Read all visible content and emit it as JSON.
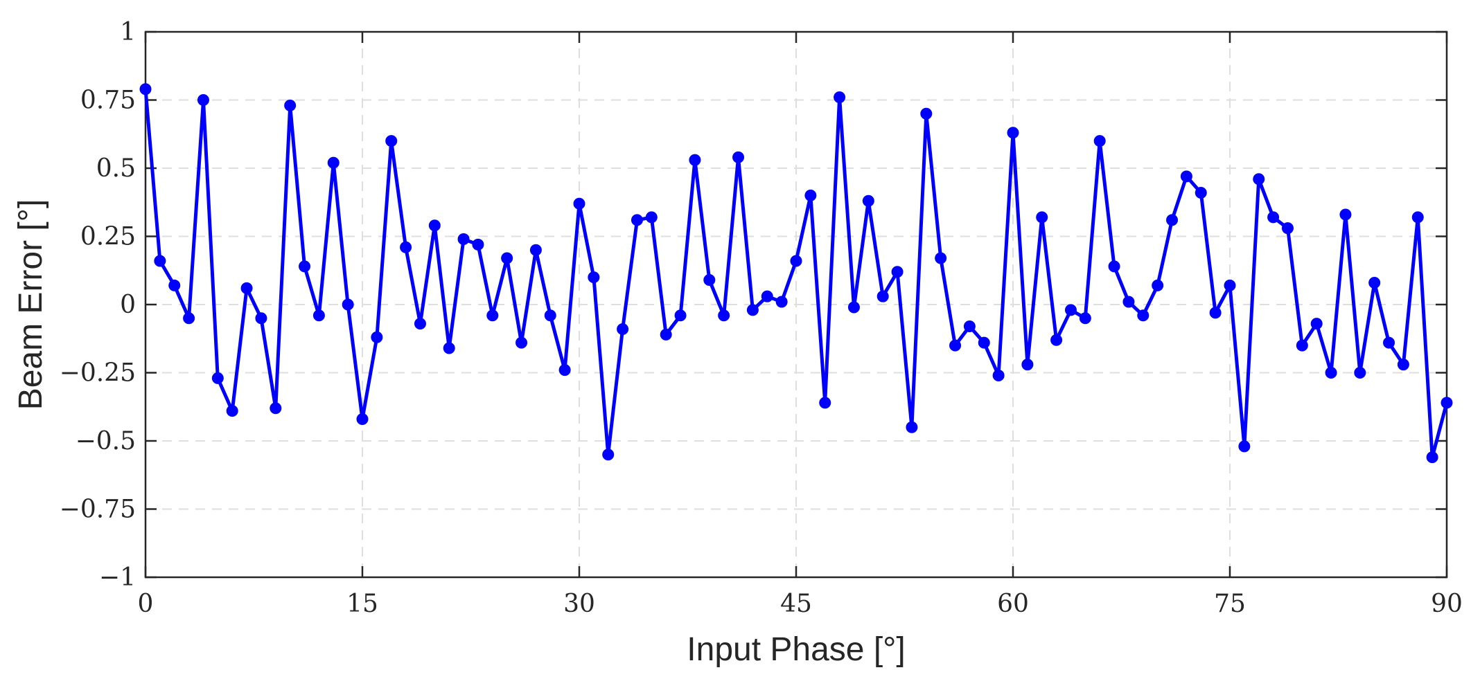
{
  "chart_data": {
    "type": "line",
    "xlabel": "Input Phase [°]",
    "ylabel": "Beam Error [°]",
    "xlim": [
      0,
      90
    ],
    "ylim": [
      -1,
      1
    ],
    "xticks": [
      0,
      15,
      30,
      45,
      60,
      75,
      90
    ],
    "xtick_labels": [
      "0",
      "15",
      "30",
      "45",
      "60",
      "75",
      "90"
    ],
    "yticks": [
      -1,
      -0.75,
      -0.5,
      -0.25,
      0,
      0.25,
      0.5,
      0.75,
      1
    ],
    "ytick_labels": [
      "−1",
      "−0.75",
      "−0.5",
      "−0.25",
      "0",
      "0.25",
      "0.5",
      "0.75",
      "1"
    ],
    "grid": true,
    "legend": "none",
    "series": [
      {
        "color": "#0000ff",
        "marker": "circle",
        "x": [
          0,
          1,
          2,
          3,
          4,
          5,
          6,
          7,
          8,
          9,
          10,
          11,
          12,
          13,
          14,
          15,
          16,
          17,
          18,
          19,
          20,
          21,
          22,
          23,
          24,
          25,
          26,
          27,
          28,
          29,
          30,
          31,
          32,
          33,
          34,
          35,
          36,
          37,
          38,
          39,
          40,
          41,
          42,
          43,
          44,
          45,
          46,
          47,
          48,
          49,
          50,
          51,
          52,
          53,
          54,
          55,
          56,
          57,
          58,
          59,
          60,
          61,
          62,
          63,
          64,
          65,
          66,
          67,
          68,
          69,
          70,
          71,
          72,
          73,
          74,
          75,
          76,
          77,
          78,
          79,
          80,
          81,
          82,
          83,
          84,
          85,
          86,
          87,
          88,
          89,
          90
        ],
        "y": [
          0.79,
          0.16,
          0.07,
          -0.05,
          0.75,
          -0.27,
          -0.39,
          0.06,
          -0.05,
          -0.38,
          0.73,
          0.14,
          -0.04,
          0.52,
          0.0,
          -0.42,
          -0.12,
          0.6,
          0.21,
          -0.07,
          0.29,
          -0.16,
          0.24,
          0.22,
          -0.04,
          0.17,
          -0.14,
          0.2,
          -0.04,
          -0.24,
          0.37,
          0.1,
          -0.55,
          -0.09,
          0.31,
          0.32,
          -0.11,
          -0.04,
          0.53,
          0.09,
          -0.04,
          0.54,
          -0.02,
          0.03,
          0.01,
          0.16,
          0.4,
          -0.36,
          0.76,
          -0.01,
          0.38,
          0.03,
          0.12,
          -0.45,
          0.7,
          0.17,
          -0.15,
          -0.08,
          -0.14,
          -0.26,
          0.63,
          -0.22,
          0.32,
          -0.13,
          -0.02,
          -0.05,
          0.6,
          0.14,
          0.01,
          -0.04,
          0.07,
          0.31,
          0.47,
          0.41,
          -0.03,
          0.07,
          -0.52,
          0.46,
          0.32,
          0.28,
          -0.15,
          -0.07,
          -0.25,
          0.33,
          -0.25,
          0.08,
          -0.14,
          -0.22,
          0.32,
          -0.56,
          -0.36
        ]
      }
    ]
  }
}
